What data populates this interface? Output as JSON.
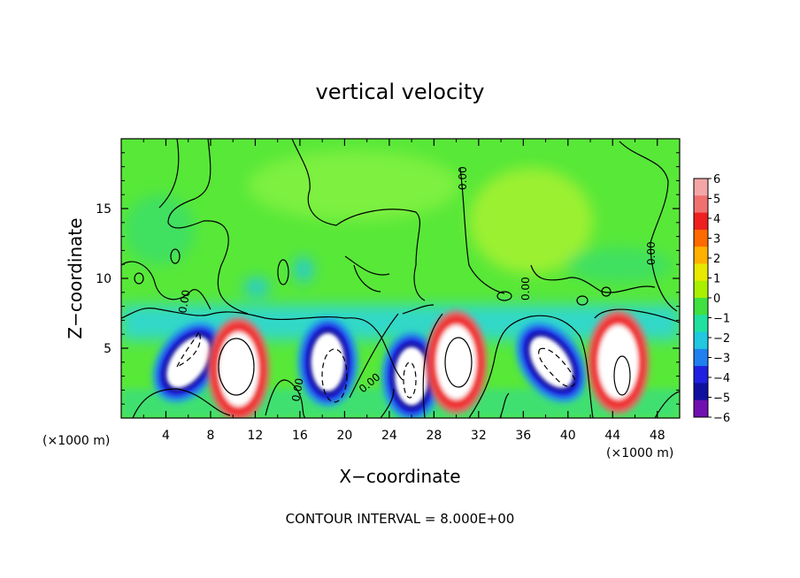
{
  "chart_data": {
    "type": "heatmap",
    "title": "vertical velocity",
    "xlabel": "X−coordinate",
    "ylabel": "Z−coordinate",
    "x_unit": "(×1000 m)",
    "x_unit_bottom": "(×1000 m)",
    "xlim": [
      0,
      50
    ],
    "ylim": [
      0,
      20
    ],
    "x_ticks": [
      4,
      8,
      12,
      16,
      20,
      24,
      28,
      32,
      36,
      40,
      44,
      48
    ],
    "y_ticks": [
      5,
      10,
      15
    ],
    "colorbar": {
      "min": -6,
      "max": 6,
      "labels": [
        "6",
        "5",
        "4",
        "3",
        "2",
        "1",
        "0",
        "−1",
        "−2",
        "−3",
        "−4",
        "−5",
        "−6"
      ],
      "colors": [
        "#f4a6a6",
        "#f07070",
        "#ee2020",
        "#ff6a00",
        "#ffb000",
        "#e8e800",
        "#a8f000",
        "#40e040",
        "#20e0a0",
        "#20c8e0",
        "#2080f0",
        "#2020e0",
        "#1010a0",
        "#7010b0"
      ]
    },
    "contour_interval": "CONTOUR INTERVAL = 8.000E+00",
    "contour_labels": [
      "0.00",
      "0.00",
      "0.00",
      "0.00",
      "0.00",
      "0.00"
    ],
    "cells": [
      {
        "x": 6,
        "z": 4,
        "w": -6
      },
      {
        "x": 10.5,
        "z": 3.5,
        "w": 6
      },
      {
        "x": 18.5,
        "z": 4,
        "w": -6
      },
      {
        "x": 26,
        "z": 3,
        "w": -6
      },
      {
        "x": 30,
        "z": 4,
        "w": 6
      },
      {
        "x": 38.5,
        "z": 4,
        "w": -6
      },
      {
        "x": 44.5,
        "z": 4,
        "w": 6
      }
    ]
  }
}
